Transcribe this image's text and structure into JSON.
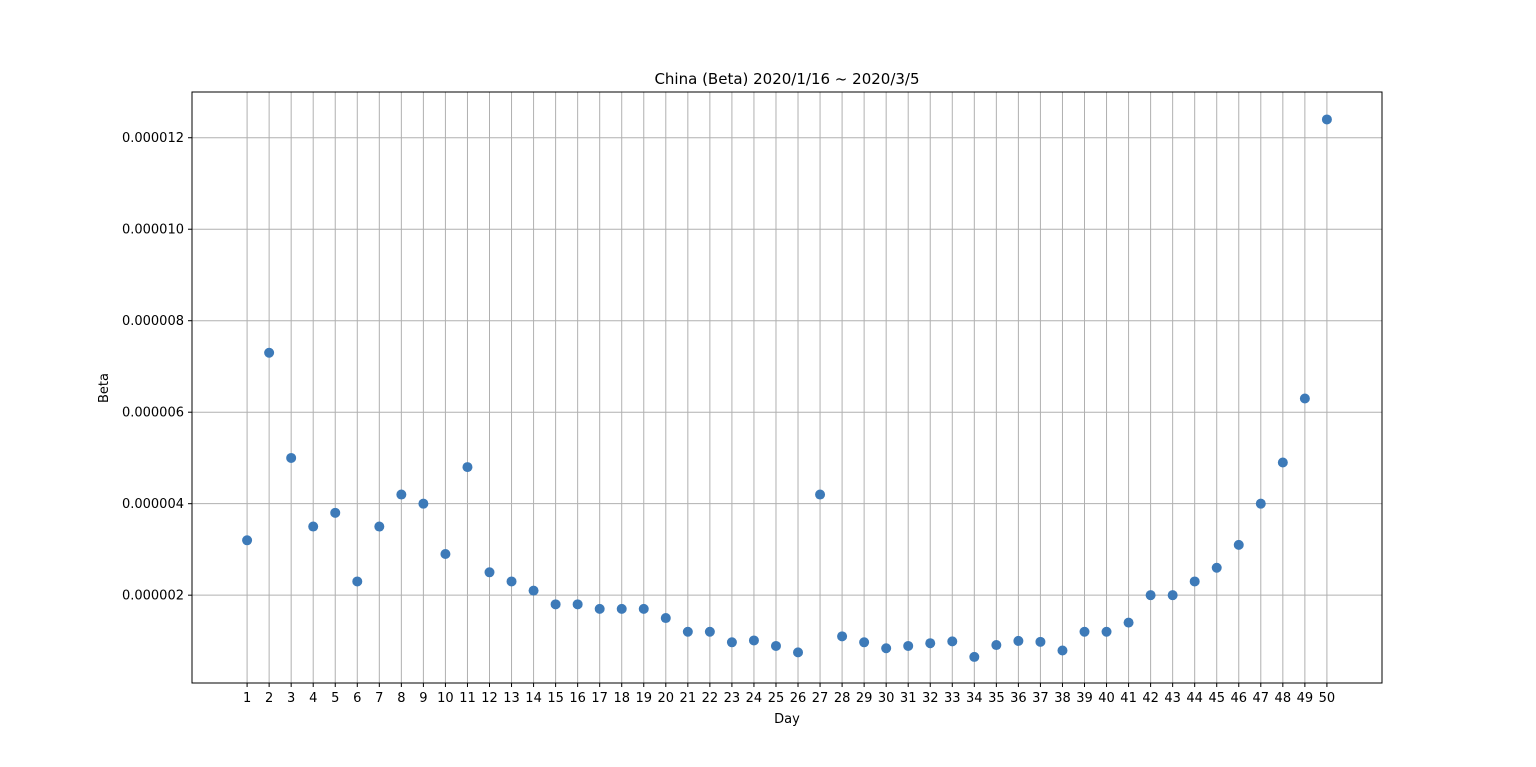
{
  "chart_data": {
    "type": "scatter",
    "title": "China (Beta) 2020/1/16 ~ 2020/3/5",
    "xlabel": "Day",
    "ylabel": "Beta",
    "grid": true,
    "xlim": [
      -1.5,
      52.5
    ],
    "ylim": [
      8e-08,
      1.3e-05
    ],
    "x": [
      1,
      2,
      3,
      4,
      5,
      6,
      7,
      8,
      9,
      10,
      11,
      12,
      13,
      14,
      15,
      16,
      17,
      18,
      19,
      20,
      21,
      22,
      23,
      24,
      25,
      26,
      27,
      28,
      29,
      30,
      31,
      32,
      33,
      34,
      35,
      36,
      37,
      38,
      39,
      40,
      41,
      42,
      43,
      44,
      45,
      46,
      47,
      48,
      49,
      50
    ],
    "x_tick_labels": [
      "1",
      "2",
      "3",
      "4",
      "5",
      "6",
      "7",
      "8",
      "9",
      "10",
      "11",
      "12",
      "13",
      "14",
      "15",
      "16",
      "17",
      "18",
      "19",
      "20",
      "21",
      "22",
      "23",
      "24",
      "25",
      "26",
      "27",
      "28",
      "29",
      "30",
      "31",
      "32",
      "33",
      "34",
      "35",
      "36",
      "37",
      "38",
      "39",
      "40",
      "41",
      "42",
      "43",
      "44",
      "45",
      "46",
      "47",
      "48",
      "49",
      "50"
    ],
    "y_ticks": [
      2e-06,
      4e-06,
      6e-06,
      8e-06,
      1e-05,
      1.2e-05
    ],
    "y_tick_labels": [
      "0.000002",
      "0.000004",
      "0.000006",
      "0.000008",
      "0.000010",
      "0.000012"
    ],
    "series": [
      {
        "color": "#3d7ab8",
        "values": [
          3.2e-06,
          7.3e-06,
          5e-06,
          3.5e-06,
          3.8e-06,
          2.3e-06,
          3.5e-06,
          4.2e-06,
          4e-06,
          2.9e-06,
          4.8e-06,
          2.5e-06,
          2.3e-06,
          2.1e-06,
          1.8e-06,
          1.8e-06,
          1.7e-06,
          1.7e-06,
          1.7e-06,
          1.5e-06,
          1.2e-06,
          1.2e-06,
          9.7e-07,
          1.01e-06,
          8.9e-07,
          7.5e-07,
          4.2e-06,
          1.1e-06,
          9.7e-07,
          8.4e-07,
          8.9e-07,
          9.5e-07,
          9.9e-07,
          6.5e-07,
          9.1e-07,
          1e-06,
          9.8e-07,
          7.9e-07,
          1.2e-06,
          1.2e-06,
          1.4e-06,
          2e-06,
          2e-06,
          2.3e-06,
          2.6e-06,
          3.1e-06,
          4e-06,
          4.9e-06,
          6.3e-06,
          1.24e-05
        ]
      }
    ]
  }
}
